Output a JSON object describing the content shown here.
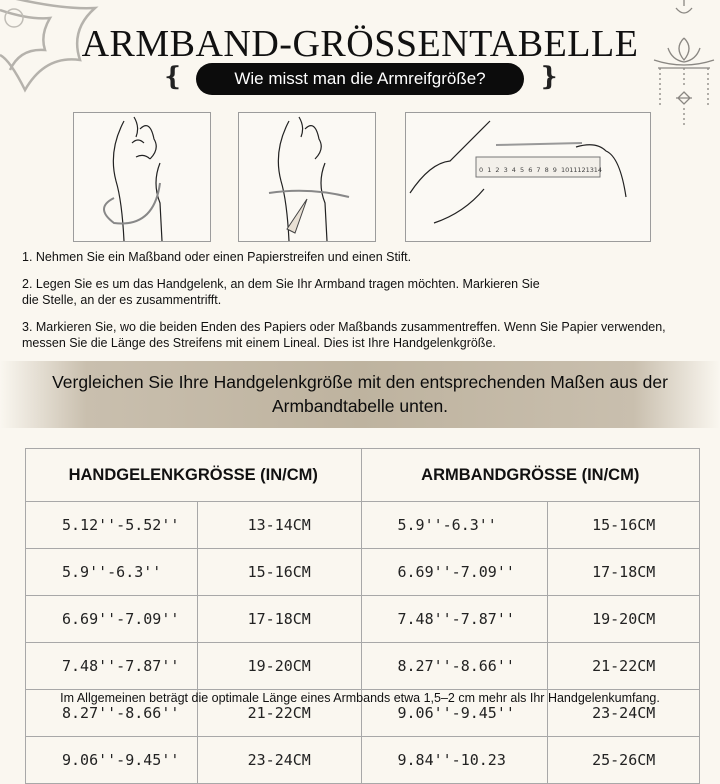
{
  "header": {
    "title": "ARMBAND-GRÖSSENTABELLE",
    "subtitle": "Wie misst man die Armreifgröße?"
  },
  "ruler_numbers": [
    "0",
    "1",
    "2",
    "3",
    "4",
    "5",
    "6",
    "7",
    "8",
    "9",
    "10",
    "11",
    "12",
    "13",
    "14"
  ],
  "steps": [
    "1. Nehmen Sie ein Maßband oder einen Papierstreifen und einen Stift.",
    "2. Legen Sie es um das Handgelenk, an dem Sie Ihr Armband tragen möchten. Markieren Sie",
    "die Stelle, an der es zusammentrifft.",
    "3. Markieren Sie, wo die beiden Enden des Papiers oder Maßbands zusammentreffen. Wenn Sie Papier verwenden,",
    "messen Sie die Länge des Streifens mit einem Lineal. Dies ist Ihre Handgelenkgröße."
  ],
  "banner": {
    "line1": "Vergleichen Sie Ihre Handgelenkgröße mit den entsprechenden Maßen aus der",
    "line2": "Armbandtabelle unten."
  },
  "table": {
    "headers": [
      "HANDGELENKGRÖSSE (IN/CM)",
      "ARMBANDGRÖSSE (IN/CM)"
    ],
    "rows": [
      [
        "5.12''-5.52''",
        "13-14CM",
        "5.9''-6.3''",
        "15-16CM"
      ],
      [
        "5.9''-6.3''",
        "15-16CM",
        "6.69''-7.09''",
        "17-18CM"
      ],
      [
        "6.69''-7.09''",
        "17-18CM",
        "7.48''-7.87''",
        "19-20CM"
      ],
      [
        "7.48''-7.87''",
        "19-20CM",
        "8.27''-8.66''",
        "21-22CM"
      ],
      [
        "8.27''-8.66''",
        "21-22CM",
        "9.06''-9.45''",
        "23-24CM"
      ],
      [
        "9.06''-9.45''",
        "23-24CM",
        "9.84''-10.23",
        "25-26CM"
      ]
    ]
  },
  "footer": "Im Allgemeinen beträgt die optimale Länge eines Armbands etwa 1,5–2 cm mehr als Ihr Handgelenkumfang.",
  "icons": {
    "left_ornament": "lotus-mandala-icon",
    "right_ornament": "hanging-lotus-icon",
    "curls": "flourish-icon"
  }
}
